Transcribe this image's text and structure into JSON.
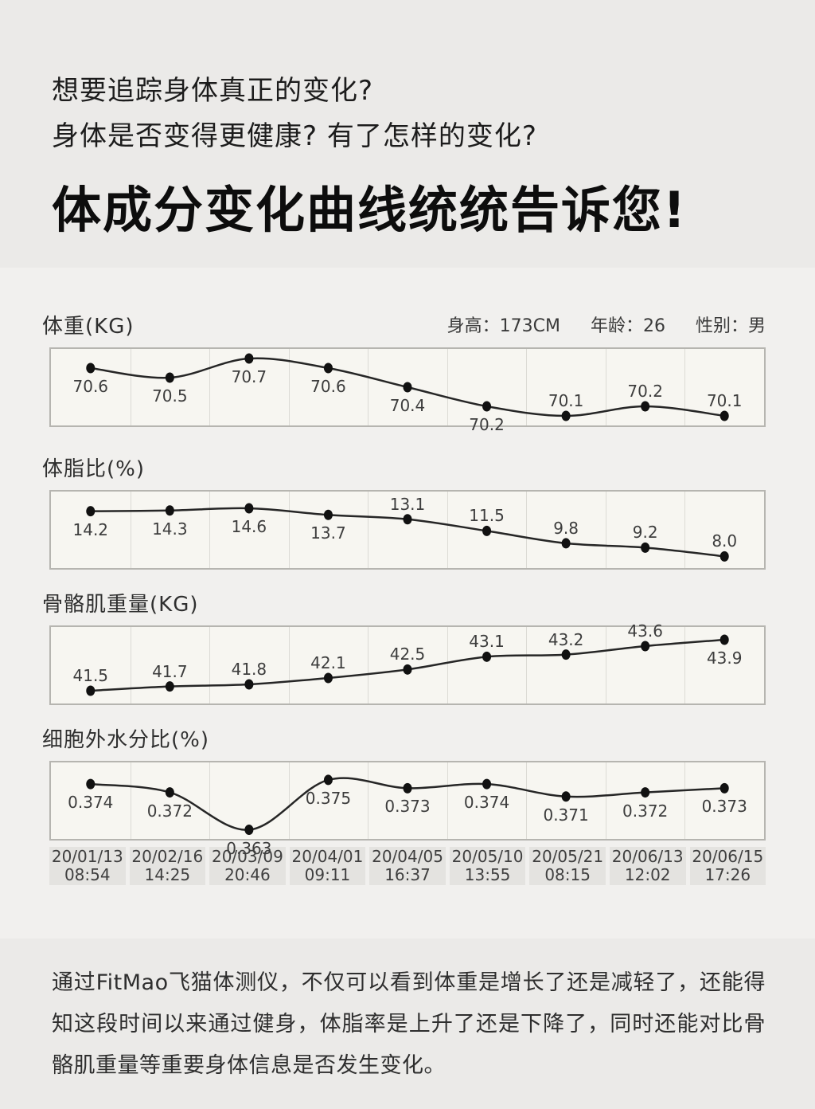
{
  "header": {
    "line1": "想要追踪身体真正的变化?",
    "line2": "身体是否变得更健康? 有了怎样的变化?",
    "title": "体成分变化曲线统统告诉您!"
  },
  "profile": {
    "height_label": "身高：",
    "height_value": "173CM",
    "age_label": "年龄：",
    "age_value": "26",
    "gender_label": "性别：",
    "gender_value": "男"
  },
  "chart_data": {
    "type": "line",
    "categories": [
      "20/01/13 08:54",
      "20/02/16 14:25",
      "20/03/09 20:46",
      "20/04/01 09:11",
      "20/04/05 16:37",
      "20/05/10 13:55",
      "20/05/21 08:15",
      "20/06/13 12:02",
      "20/06/15 17:26"
    ],
    "grid": "vertical-only",
    "legend_position": "none",
    "series": [
      {
        "name": "体重(KG)",
        "values": [
          70.6,
          70.5,
          70.7,
          70.6,
          70.4,
          70.2,
          70.1,
          70.2,
          70.1
        ],
        "ylim": [
          70.0,
          70.8
        ],
        "decimals": 1,
        "label_side": [
          "below",
          "below",
          "below",
          "below",
          "below",
          "below",
          "above",
          "above",
          "above"
        ]
      },
      {
        "name": "体脂比(%)",
        "values": [
          14.2,
          14.3,
          14.6,
          13.7,
          13.1,
          11.5,
          9.8,
          9.2,
          8.0
        ],
        "ylim": [
          6.4,
          16.9
        ],
        "decimals": 1,
        "label_side": [
          "below",
          "below",
          "below",
          "below",
          "above",
          "above",
          "above",
          "above",
          "above"
        ]
      },
      {
        "name": "骨骼肌重量(KG)",
        "values": [
          41.5,
          41.7,
          41.8,
          42.1,
          42.5,
          43.1,
          43.2,
          43.6,
          43.9
        ],
        "ylim": [
          40.9,
          44.5
        ],
        "decimals": 1,
        "label_side": [
          "above",
          "above",
          "above",
          "above",
          "above",
          "above",
          "above",
          "above",
          "below"
        ]
      },
      {
        "name": "细胞外水分比(%)",
        "values": [
          0.374,
          0.372,
          0.363,
          0.375,
          0.373,
          0.374,
          0.371,
          0.372,
          0.373
        ],
        "ylim": [
          0.3608,
          0.3792
        ],
        "decimals": 3,
        "label_side": [
          "below",
          "below",
          "below",
          "below",
          "below",
          "below",
          "below",
          "below",
          "below"
        ]
      }
    ]
  },
  "x_axis": {
    "labels": [
      {
        "date": "20/01/13",
        "time": "08:54"
      },
      {
        "date": "20/02/16",
        "time": "14:25"
      },
      {
        "date": "20/03/09",
        "time": "20:46"
      },
      {
        "date": "20/04/01",
        "time": "09:11"
      },
      {
        "date": "20/04/05",
        "time": "16:37"
      },
      {
        "date": "20/05/10",
        "time": "13:55"
      },
      {
        "date": "20/05/21",
        "time": "08:15"
      },
      {
        "date": "20/06/13",
        "time": "12:02"
      },
      {
        "date": "20/06/15",
        "time": "17:26"
      }
    ]
  },
  "footer": {
    "text": "通过FitMao飞猫体测仪，不仅可以看到体重是增长了还是减轻了，还能得知这段时间以来通过健身，体脂率是上升了还是下降了，同时还能对比骨骼肌重量等重要身体信息是否发生变化。"
  },
  "colors": {
    "page_bg": "#ebeae8",
    "panel_bg": "#f1f0ee",
    "chart_bg": "#f7f6f1",
    "chart_border": "#b6b5b0",
    "gridline": "#dcdbd5",
    "line": "#262626",
    "point": "#111111",
    "date_cell_bg": "#e4e3e0",
    "text": "#1f1f1f"
  }
}
